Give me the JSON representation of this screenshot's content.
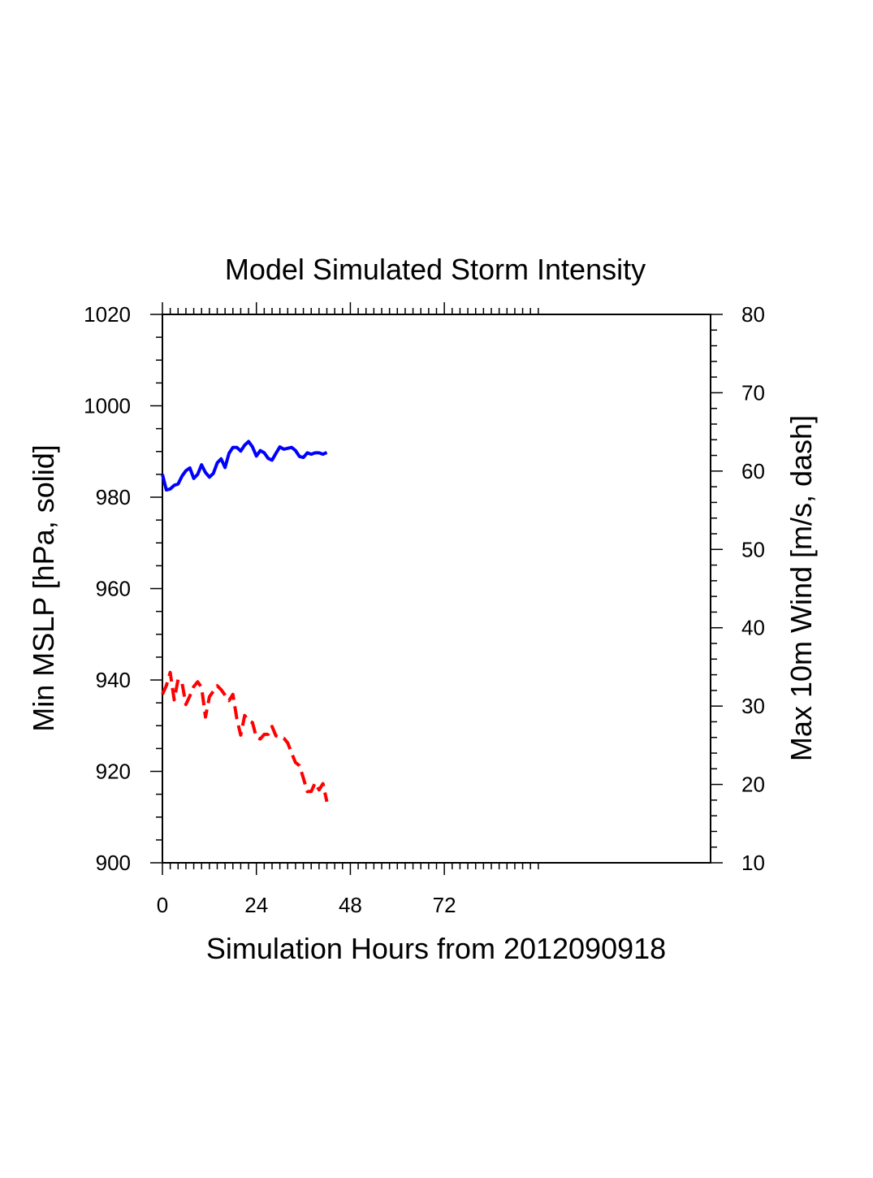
{
  "chart_data": {
    "type": "line",
    "title": "Model Simulated Storm Intensity",
    "xlabel": "Simulation Hours from 2012090918",
    "ylabel_left": "Min MSLP  [hPa, solid]",
    "ylabel_right": "Max 10m Wind  [m/s, dash]",
    "xlim": [
      0,
      140
    ],
    "ylim_left": [
      900,
      1020
    ],
    "ylim_right": [
      10,
      80
    ],
    "x_ticks": [
      0,
      24,
      48,
      72
    ],
    "x_tick_labels": [
      "0",
      "24",
      "48",
      "72"
    ],
    "y_left_ticks": [
      900,
      920,
      940,
      960,
      980,
      1000,
      1020
    ],
    "y_left_tick_labels": [
      "900",
      "920",
      "940",
      "960",
      "980",
      "1000",
      "1020"
    ],
    "y_right_ticks": [
      10,
      20,
      30,
      40,
      50,
      60,
      70,
      80
    ],
    "y_right_tick_labels": [
      "10",
      "20",
      "30",
      "40",
      "50",
      "60",
      "70",
      "80"
    ],
    "grid": false,
    "series": [
      {
        "axis": "left",
        "style": "solid",
        "color": "#0000ff",
        "x": [
          0,
          1,
          2,
          3,
          4,
          5,
          6,
          7,
          8,
          9,
          10,
          11,
          12,
          13,
          14,
          15,
          16,
          17,
          18,
          19,
          20,
          21,
          22,
          23,
          24,
          25,
          26,
          27,
          28,
          29,
          30,
          31,
          32,
          33,
          34,
          35,
          36,
          37,
          38,
          39,
          40,
          41,
          42
        ],
        "y": [
          985.0,
          981.6,
          981.8,
          982.6,
          982.9,
          984.6,
          985.8,
          986.4,
          984.1,
          985.0,
          987.1,
          985.4,
          984.4,
          985.2,
          987.5,
          988.4,
          986.5,
          989.6,
          990.9,
          990.9,
          990.1,
          991.4,
          992.2,
          991.0,
          989.0,
          990.2,
          989.7,
          988.5,
          988.1,
          989.6,
          991.0,
          990.5,
          990.7,
          990.9,
          990.2,
          988.9,
          988.7,
          989.7,
          989.4,
          989.7,
          989.7,
          989.4,
          989.8
        ]
      },
      {
        "axis": "right",
        "style": "dash",
        "color": "#ff0000",
        "x": [
          0,
          1,
          2,
          3,
          4,
          5,
          6,
          7,
          8,
          9,
          10,
          11,
          12,
          13,
          14,
          15,
          16,
          17,
          18,
          19,
          20,
          21,
          22,
          23,
          24,
          25,
          26,
          27,
          28,
          29,
          30,
          31,
          32,
          33,
          34,
          35,
          36,
          37,
          38,
          39,
          40,
          41,
          42
        ],
        "y": [
          31.5,
          32.6,
          34.3,
          30.8,
          33.4,
          33.0,
          30.2,
          31.3,
          32.5,
          33.1,
          32.4,
          28.6,
          31.2,
          31.9,
          32.6,
          32.1,
          31.4,
          30.7,
          31.5,
          28.4,
          26.3,
          28.8,
          28.1,
          27.9,
          26.0,
          25.8,
          26.4,
          26.4,
          27.4,
          26.2,
          26.0,
          25.9,
          25.3,
          24.0,
          22.8,
          22.4,
          20.8,
          19.1,
          19.1,
          20.2,
          19.3,
          20.1,
          17.8
        ]
      }
    ]
  }
}
